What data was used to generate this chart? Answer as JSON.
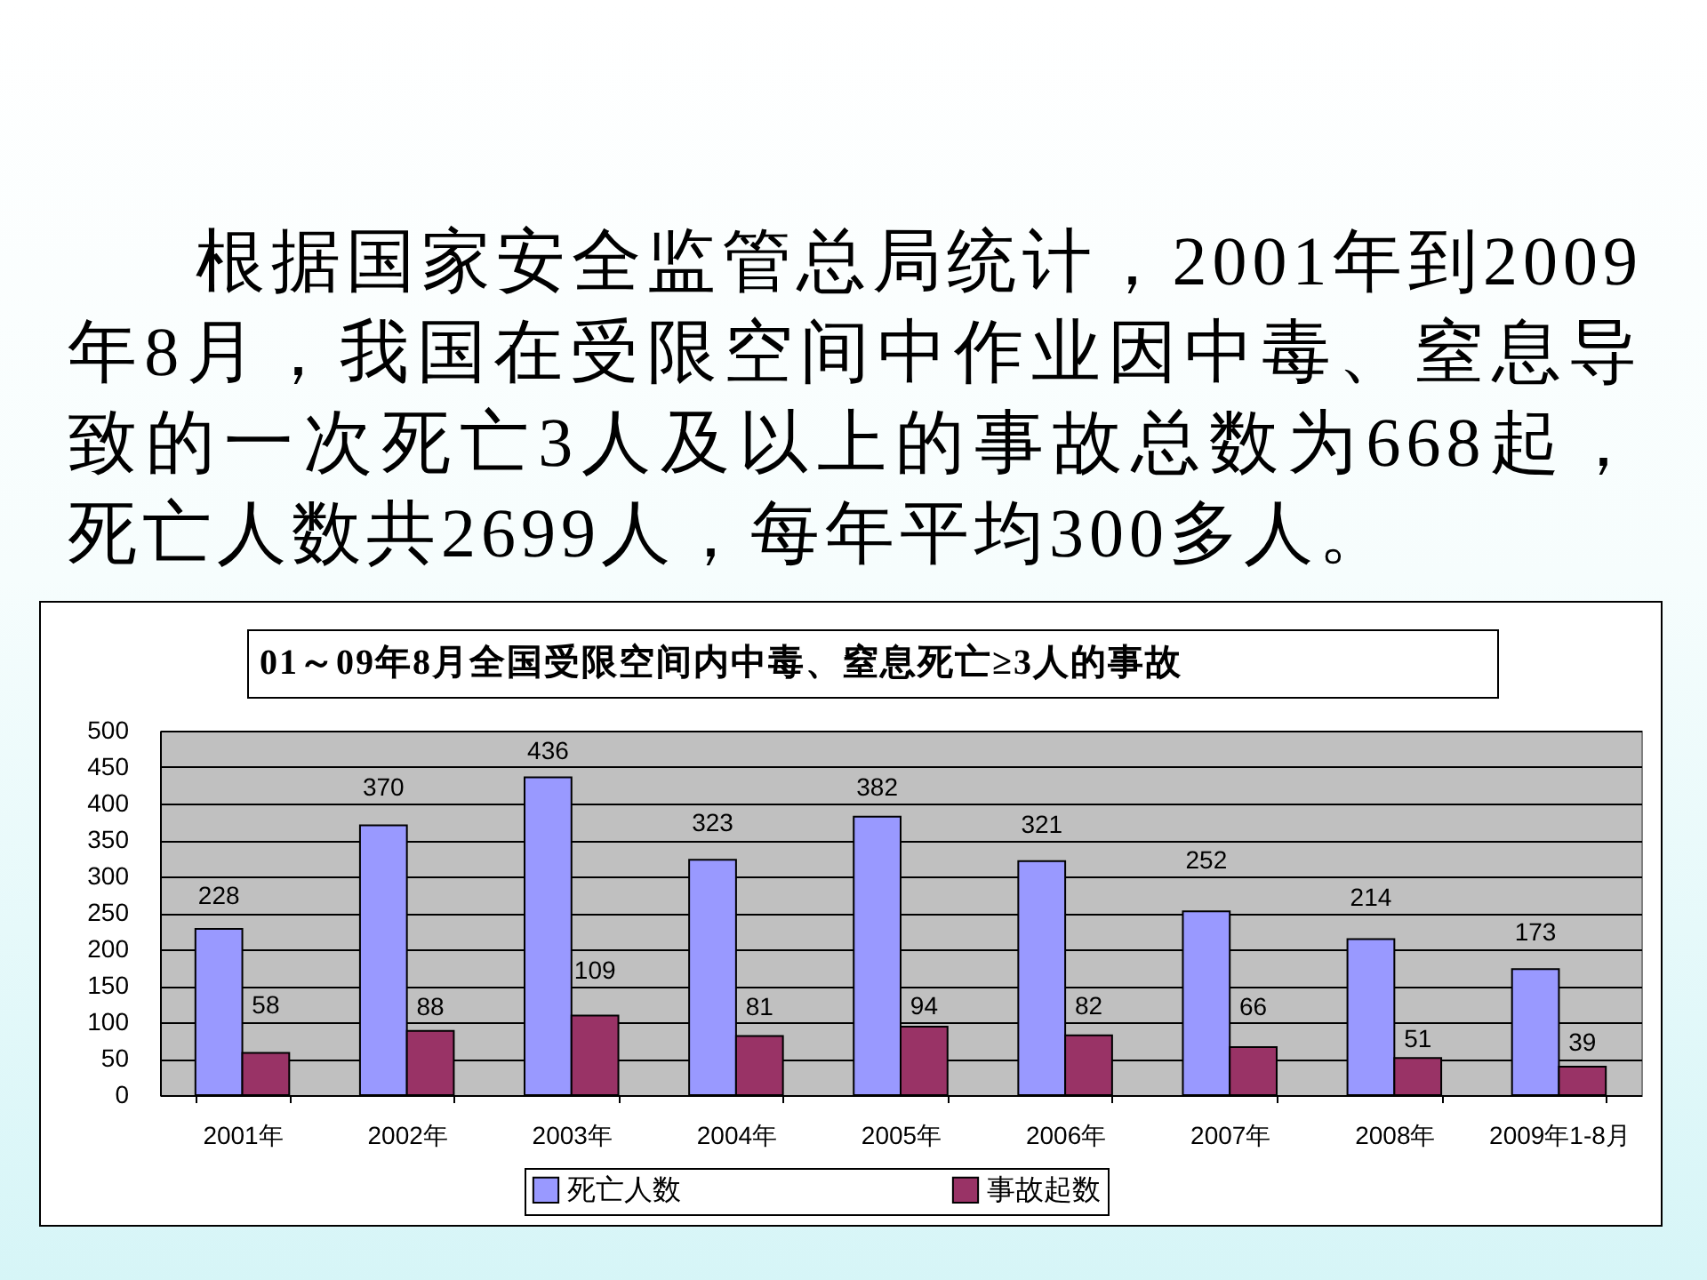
{
  "chart_data": {
    "type": "bar",
    "title": "01～09年8月全国受限空间内中毒、窒息死亡≥3人的事故",
    "annotations": [
      "根据国家安全监管总局统计，2001年到2009年8月，我国在受限空间中作业因中毒、窒息导致的一次死亡3人及以上的事故总数为668起，死亡人数共2699人，每年平均300多人。"
    ],
    "categories": [
      "2001年",
      "2002年",
      "2003年",
      "2004年",
      "2005年",
      "2006年",
      "2007年",
      "2008年",
      "2009年1-8月"
    ],
    "series": [
      {
        "name": "死亡人数",
        "color": "#9999ff",
        "values": [
          228,
          370,
          436,
          323,
          382,
          321,
          252,
          214,
          173
        ]
      },
      {
        "name": "事故起数",
        "color": "#993366",
        "values": [
          58,
          88,
          109,
          81,
          94,
          82,
          66,
          51,
          39
        ]
      }
    ],
    "ylim": [
      0,
      500
    ],
    "yticks": [
      0,
      50,
      100,
      150,
      200,
      250,
      300,
      350,
      400,
      450,
      500
    ],
    "grid": "y",
    "legend": "bottom",
    "data_labels": true
  }
}
